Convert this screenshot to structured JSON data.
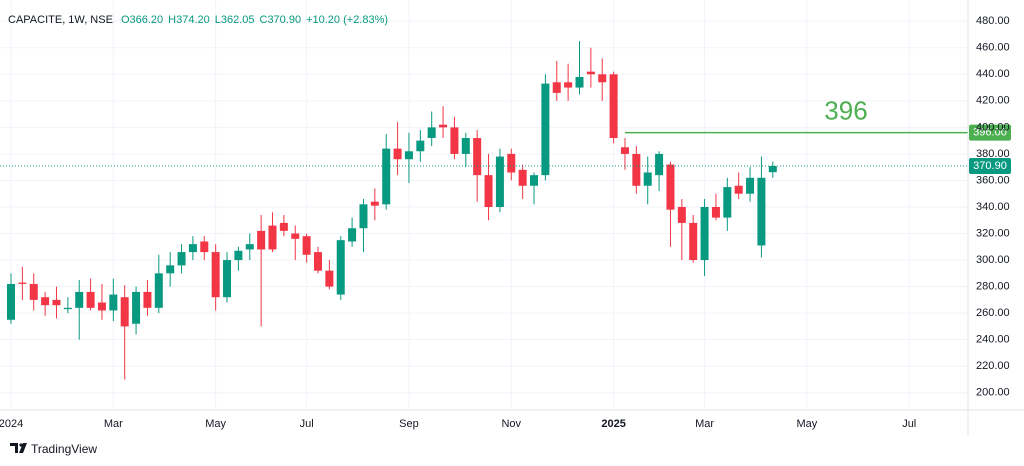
{
  "chart_data": {
    "type": "candlestick",
    "title": "CAPACITE, 1W, NSE",
    "header_values": [
      "O366.20",
      "H374.20",
      "L362.05",
      "C370.90"
    ],
    "change": "+10.20 (+2.83%)",
    "categories": [
      "2024",
      null,
      null,
      null,
      null,
      null,
      null,
      null,
      null,
      "Mar",
      null,
      null,
      null,
      null,
      null,
      null,
      null,
      null,
      "May",
      null,
      null,
      null,
      null,
      null,
      null,
      null,
      "Jul",
      null,
      null,
      null,
      null,
      null,
      null,
      null,
      null,
      "Sep",
      null,
      null,
      null,
      null,
      null,
      null,
      null,
      null,
      "Nov",
      null,
      null,
      null,
      null,
      null,
      null,
      null,
      null,
      "2025",
      null,
      null,
      null,
      null,
      null,
      null,
      null,
      "Mar",
      null,
      null,
      null,
      null,
      null,
      null,
      null,
      null,
      "May",
      null,
      null,
      null,
      null,
      null,
      null,
      null,
      null,
      "Jul",
      null,
      null,
      null,
      null,
      null
    ],
    "open": [
      255,
      283,
      282,
      272,
      270,
      263,
      264,
      276,
      268,
      262,
      272,
      252,
      276,
      264,
      290,
      296,
      306,
      314,
      306,
      272,
      300,
      308,
      322,
      326,
      328,
      320,
      318,
      306,
      292,
      274,
      314,
      324,
      344,
      342,
      384,
      376,
      382,
      392,
      402,
      400,
      380,
      392,
      364,
      340,
      380,
      368,
      356,
      364,
      434,
      434,
      430,
      442,
      440,
      440,
      385,
      380,
      356,
      364,
      372,
      340,
      328,
      300,
      340,
      332,
      356,
      350,
      311,
      366.2,
      null,
      null,
      null,
      null,
      null,
      null,
      null,
      null,
      null,
      null,
      null,
      null,
      null,
      null,
      null,
      null,
      null
    ],
    "high": [
      290,
      295,
      290,
      276,
      280,
      272,
      285,
      286,
      282,
      286,
      281,
      280,
      285,
      304,
      306,
      312,
      318,
      318,
      312,
      306,
      310,
      320,
      334,
      336,
      334,
      326,
      320,
      310,
      300,
      318,
      332,
      346,
      354,
      395,
      404,
      396,
      398,
      412,
      416,
      408,
      396,
      398,
      380,
      384,
      384,
      372,
      366,
      440,
      450,
      448,
      465,
      460,
      452,
      442,
      392,
      386,
      378,
      382,
      374,
      346,
      334,
      346,
      350,
      362,
      366,
      370,
      378,
      374.2,
      null,
      null,
      null,
      null,
      null,
      null,
      null,
      null,
      null,
      null,
      null,
      null,
      null,
      null,
      null,
      null,
      null
    ],
    "low": [
      252,
      270,
      262,
      258,
      256,
      260,
      240,
      262,
      255,
      254,
      210,
      244,
      258,
      260,
      280,
      290,
      300,
      300,
      262,
      268,
      292,
      300,
      250,
      306,
      318,
      300,
      298,
      290,
      278,
      270,
      310,
      306,
      330,
      338,
      364,
      358,
      374,
      386,
      392,
      376,
      370,
      344,
      330,
      336,
      360,
      346,
      342,
      360,
      420,
      420,
      425,
      430,
      420,
      388,
      368,
      350,
      342,
      352,
      310,
      300,
      298,
      288,
      330,
      322,
      346,
      344,
      302,
      362.05,
      null,
      null,
      null,
      null,
      null,
      null,
      null,
      null,
      null,
      null,
      null,
      null,
      null,
      null,
      null,
      null,
      null
    ],
    "close": [
      282,
      282,
      270,
      266,
      266,
      264,
      276,
      264,
      262,
      274,
      250,
      276,
      264,
      290,
      296,
      306,
      312,
      306,
      272,
      300,
      307,
      312,
      308,
      308,
      322,
      316,
      304,
      292,
      280,
      315,
      324,
      342,
      341,
      384,
      376,
      382,
      390,
      400,
      400,
      380,
      392,
      364,
      340,
      378,
      366,
      356,
      364,
      433,
      426,
      430,
      438,
      440,
      434,
      392,
      380,
      356,
      366,
      380,
      338,
      328,
      300,
      340,
      332,
      355,
      350,
      362,
      362,
      370.9,
      null,
      null,
      null,
      null,
      null,
      null,
      null,
      null,
      null,
      null,
      null,
      null,
      null,
      null,
      null,
      null,
      null
    ],
    "up_color": "#089981",
    "down_color": "#f23645",
    "ylim": [
      187,
      496
    ],
    "yticks": [
      {
        "value": 200,
        "label": "200.00"
      },
      {
        "value": 220,
        "label": "220.00"
      },
      {
        "value": 240,
        "label": "240.00"
      },
      {
        "value": 260,
        "label": "260.00"
      },
      {
        "value": 280,
        "label": "280.00"
      },
      {
        "value": 300,
        "label": "300.00"
      },
      {
        "value": 320,
        "label": "320.00"
      },
      {
        "value": 340,
        "label": "340.00"
      },
      {
        "value": 360,
        "label": "360.00"
      },
      {
        "value": 380,
        "label": "380.00"
      },
      {
        "value": 400,
        "label": "400.00"
      },
      {
        "value": 420,
        "label": "420.00"
      },
      {
        "value": 440,
        "label": "440.00"
      },
      {
        "value": 460,
        "label": "460.00"
      },
      {
        "value": 480,
        "label": "480.00"
      }
    ],
    "grid": true,
    "last_price": {
      "value": 370.9,
      "label": "370.90"
    },
    "level": {
      "value": 396,
      "label": "396",
      "axis_label": "396.00",
      "color": "#4caf50"
    },
    "footer": "TradingView"
  }
}
